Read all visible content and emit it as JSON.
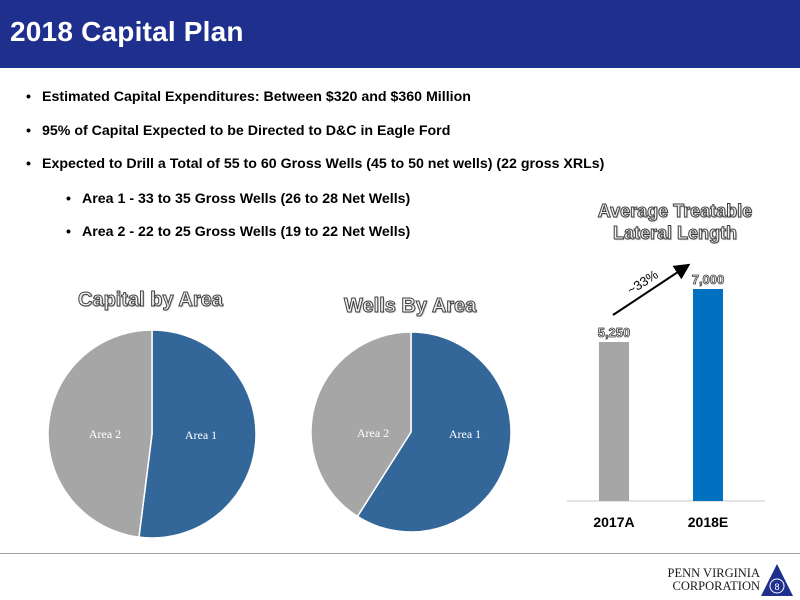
{
  "header": {
    "title": "2018 Capital Plan"
  },
  "bullets": [
    "Estimated Capital Expenditures: Between $320 and $360 Million",
    "95% of Capital Expected to be Directed to D&C in Eagle Ford",
    "Expected to Drill a Total of 55 to 60 Gross Wells (45 to 50 net wells) (22 gross XRLs)",
    "Area 1 - 33 to 35 Gross Wells (26 to 28 Net Wells)",
    "Area 2 - 22 to 25 Gross Wells (19 to 22 Net Wells)"
  ],
  "bullet_char": "•",
  "colors": {
    "title_bar": "#1f2f8e",
    "area1": "#336699",
    "area2": "#a6a6a6",
    "bar_2018E": "#0070c0",
    "bar_2017A": "#a6a6a6"
  },
  "chart_data": [
    {
      "type": "pie",
      "title": "Capital by Area",
      "series": [
        {
          "name": "Area 1",
          "value": 52
        },
        {
          "name": "Area 2",
          "value": 48
        }
      ]
    },
    {
      "type": "pie",
      "title": "Wells By Area",
      "series": [
        {
          "name": "Area 1",
          "value": 59
        },
        {
          "name": "Area 2",
          "value": 41
        }
      ]
    },
    {
      "type": "bar",
      "title": "Average Treatable Lateral Length",
      "categories": [
        "2017A",
        "2018E"
      ],
      "values": [
        5250,
        7000
      ],
      "value_labels": [
        "5,250",
        "7,000"
      ],
      "annotation": "~33%",
      "ylim": [
        0,
        8000
      ]
    }
  ],
  "footer": {
    "logo_line1": "PENN VIRGINIA",
    "logo_line2": "CORPORATION",
    "page_number": "8"
  }
}
